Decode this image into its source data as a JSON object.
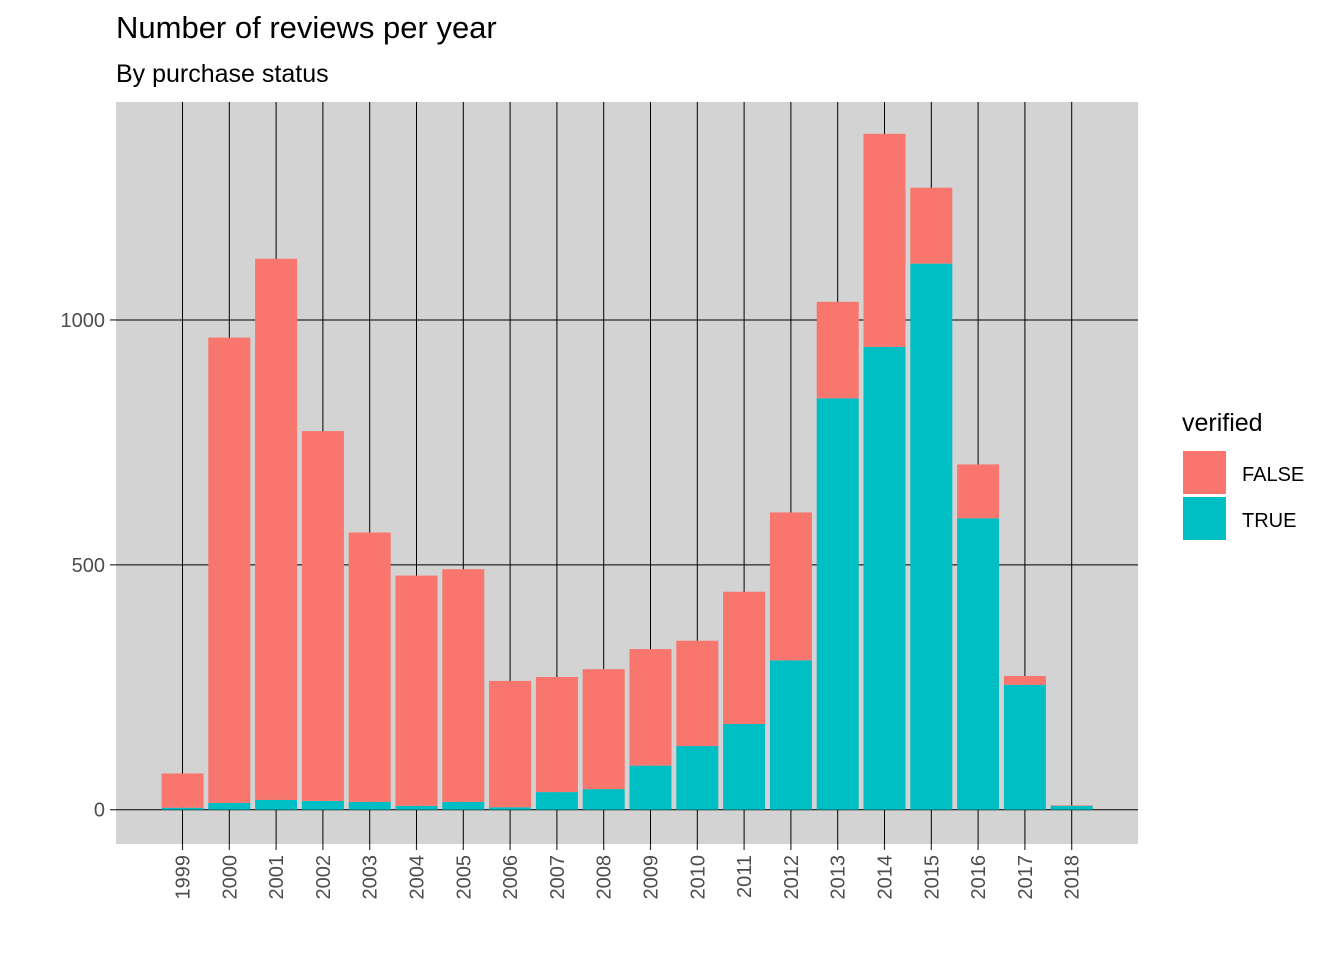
{
  "chart_data": {
    "type": "bar",
    "stacked": true,
    "title": "Number of reviews per year",
    "subtitle": "By purchase status",
    "xlabel": "",
    "ylabel": "",
    "categories": [
      "1999",
      "2000",
      "2001",
      "2002",
      "2003",
      "2004",
      "2005",
      "2006",
      "2007",
      "2008",
      "2009",
      "2010",
      "2011",
      "2012",
      "2013",
      "2014",
      "2015",
      "2016",
      "2017",
      "2018"
    ],
    "series": [
      {
        "name": "TRUE",
        "color": "#00BFC4",
        "values": [
          4,
          14,
          20,
          18,
          16,
          8,
          16,
          5,
          36,
          42,
          90,
          130,
          175,
          305,
          840,
          945,
          1115,
          595,
          255,
          8
        ]
      },
      {
        "name": "FALSE",
        "color": "#F8766D",
        "values": [
          70,
          950,
          1105,
          755,
          550,
          470,
          475,
          258,
          235,
          245,
          238,
          215,
          270,
          302,
          197,
          435,
          155,
          110,
          18,
          1
        ]
      }
    ],
    "yticks": [
      0,
      500,
      1000
    ],
    "ylim": [
      -70,
      1445
    ],
    "legend": {
      "title": "verified",
      "entries": [
        "FALSE",
        "TRUE"
      ],
      "position": "right"
    },
    "grid": true,
    "panel_background": "#D3D3D3",
    "gridline_color": "#000000"
  }
}
